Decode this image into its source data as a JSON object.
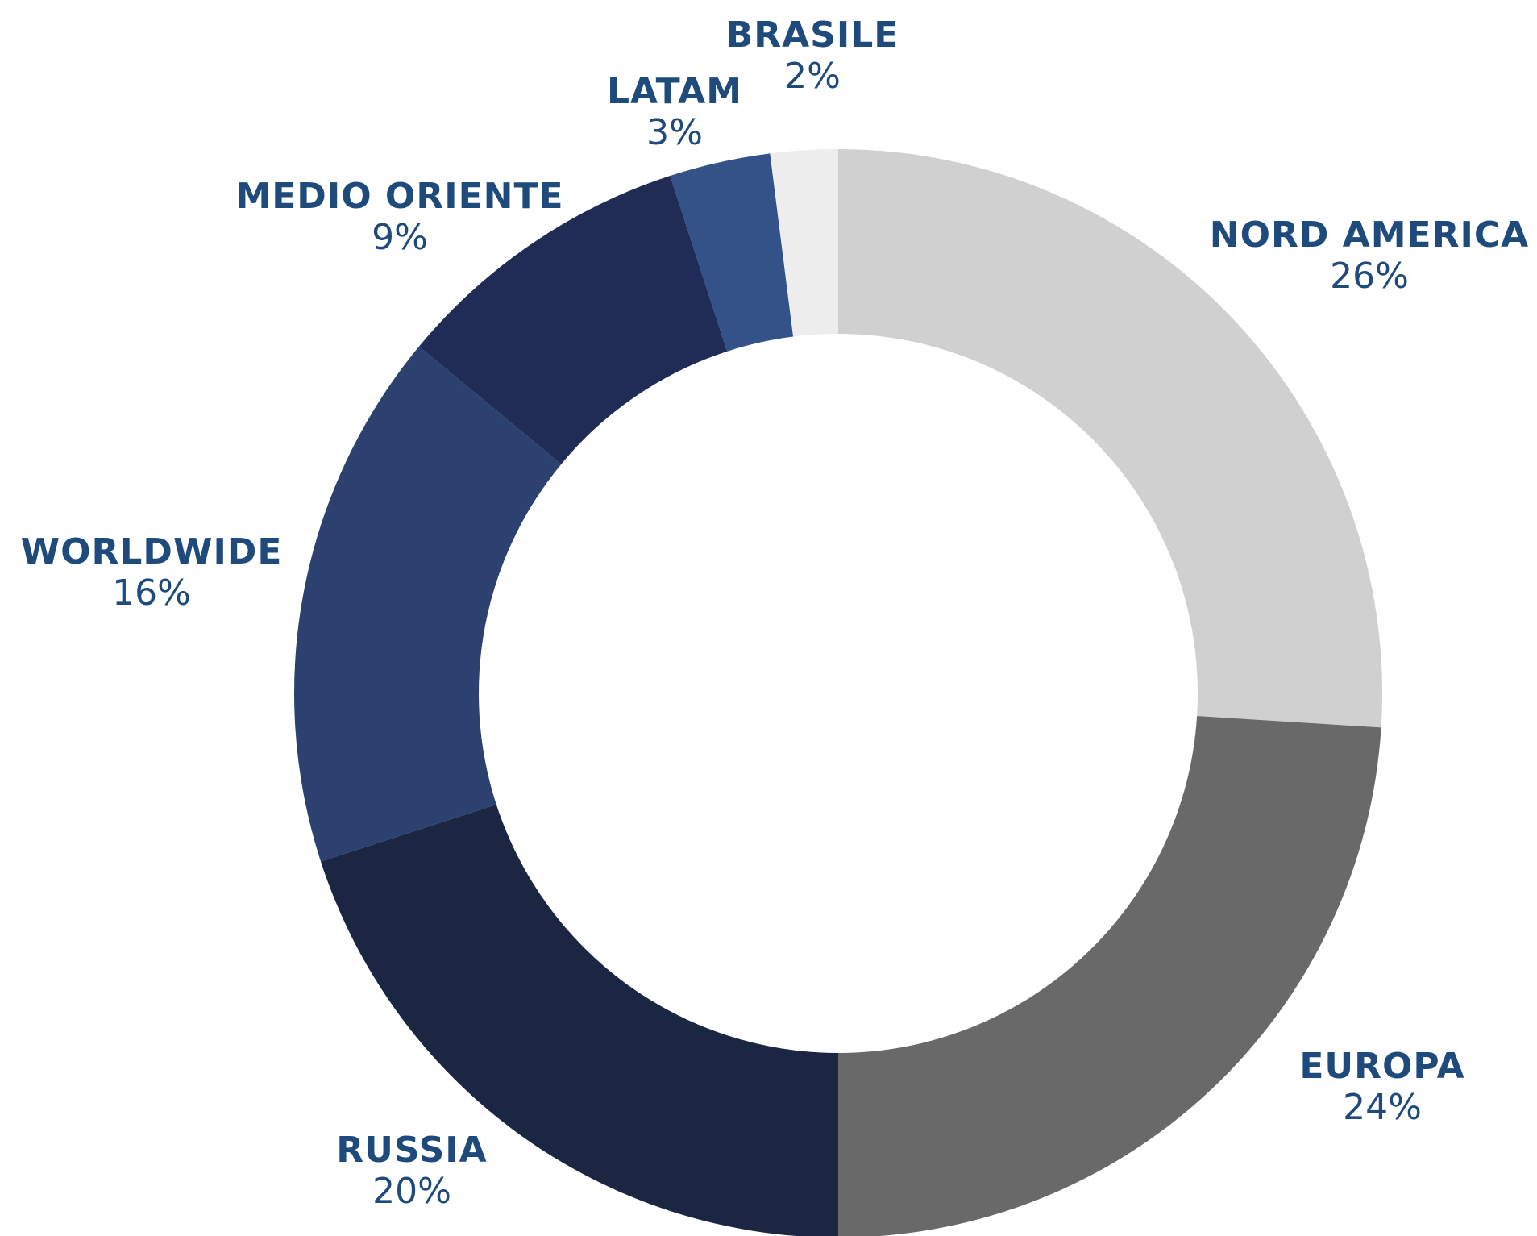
{
  "chart_data": {
    "type": "donut",
    "categories": [
      "NORD AMERICA",
      "EUROPA",
      "RUSSIA",
      "WORLDWIDE",
      "MEDIO ORIENTE",
      "LATAM",
      "BRASILE"
    ],
    "values": [
      26,
      24,
      20,
      16,
      9,
      3,
      2
    ],
    "value_labels": [
      "26%",
      "24%",
      "20%",
      "16%",
      "9%",
      "3%",
      "2%"
    ],
    "colors": [
      "#d0d0d0",
      "#696969",
      "#1a2642",
      "#2c4170",
      "#202c55",
      "#325288",
      "#ededed"
    ]
  }
}
